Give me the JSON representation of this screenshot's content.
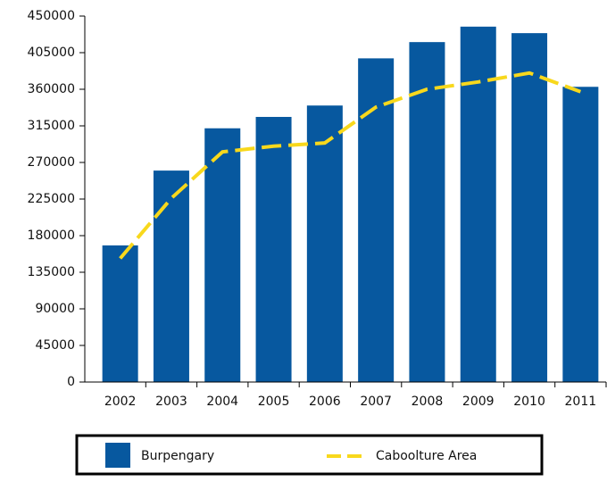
{
  "chart_data": {
    "type": "bar",
    "categories": [
      "2002",
      "2003",
      "2004",
      "2005",
      "2006",
      "2007",
      "2008",
      "2009",
      "2010",
      "2011"
    ],
    "series": [
      {
        "name": "Burpengary",
        "type": "bar",
        "color": "#07589f",
        "values": [
          168000,
          260000,
          312000,
          326000,
          340000,
          398000,
          418000,
          437000,
          429000,
          363000
        ]
      },
      {
        "name": "Caboolture Area",
        "type": "line",
        "color": "#f8d81c",
        "values": [
          152000,
          226000,
          283000,
          290000,
          294000,
          338000,
          360000,
          369000,
          380000,
          357000
        ]
      }
    ],
    "ylim": [
      0,
      450000
    ],
    "yticks": [
      0,
      45000,
      90000,
      135000,
      180000,
      225000,
      270000,
      315000,
      360000,
      405000,
      450000
    ],
    "grid": false,
    "legend": "bottom"
  }
}
